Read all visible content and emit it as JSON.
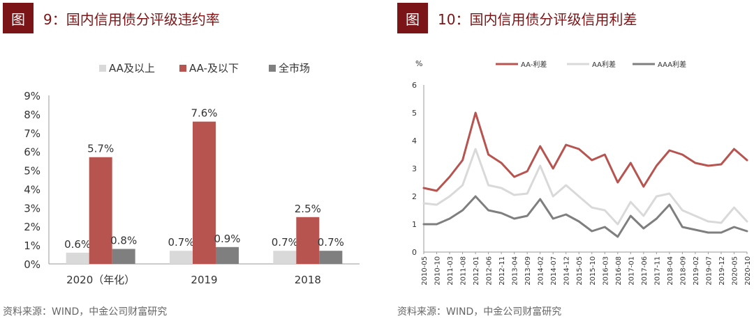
{
  "left": {
    "fig_label": "图",
    "title": "9：国内信用债分评级违约率",
    "source": "资料来源：WIND，中金公司财富研究"
  },
  "right": {
    "fig_label": "图",
    "title": "10：国内信用债分评级信用利差",
    "source": "资料来源：WIND，中金公司财富研究"
  },
  "chart_data": [
    {
      "type": "bar",
      "categories": [
        "2020（年化）",
        "2019",
        "2018"
      ],
      "series": [
        {
          "name": "AA及以上",
          "values": [
            0.6,
            0.7,
            0.7
          ],
          "labels": [
            "0.6%",
            "0.7%",
            "0.7%"
          ],
          "color": "#d9d9d9"
        },
        {
          "name": "AA-及以下",
          "values": [
            5.7,
            7.6,
            2.5
          ],
          "labels": [
            "5.7%",
            "7.6%",
            "2.5%"
          ],
          "color": "#b85450"
        },
        {
          "name": "全市场",
          "values": [
            0.8,
            0.9,
            0.7
          ],
          "labels": [
            "0.8%",
            "0.9%",
            "0.7%"
          ],
          "color": "#7f7f7f"
        }
      ],
      "ylim": [
        0,
        9
      ],
      "yticks": [
        "0%",
        "1%",
        "2%",
        "3%",
        "4%",
        "5%",
        "6%",
        "7%",
        "8%",
        "9%"
      ],
      "legend": "top",
      "title": "国内信用债分评级违约率"
    },
    {
      "type": "line",
      "ylabel": "%",
      "ylim": [
        0,
        6
      ],
      "yticks": [
        "0",
        "1",
        "2",
        "3",
        "4",
        "5",
        "6"
      ],
      "xticks": [
        "2010-05",
        "2010-10",
        "2011-03",
        "2011-08",
        "2012-01",
        "2012-06",
        "2012-11",
        "2013-04",
        "2013-09",
        "2014-02",
        "2014-07",
        "2014-12",
        "2015-05",
        "2015-10",
        "2016-03",
        "2016-08",
        "2017-01",
        "2017-06",
        "2017-11",
        "2018-04",
        "2018-09",
        "2019-02",
        "2019-07",
        "2019-12",
        "2020-05",
        "2020-10"
      ],
      "x": [
        0,
        1,
        2,
        3,
        4,
        5,
        6,
        7,
        8,
        9,
        10,
        11,
        12,
        13,
        14,
        15,
        16,
        17,
        18,
        19,
        20,
        21,
        22,
        23,
        24,
        25
      ],
      "series": [
        {
          "name": "AA-利差",
          "color": "#b85450",
          "values": [
            2.3,
            2.2,
            2.7,
            3.3,
            5.0,
            3.5,
            3.2,
            2.7,
            2.9,
            3.8,
            3.0,
            3.85,
            3.7,
            3.3,
            3.5,
            2.5,
            3.2,
            2.35,
            3.1,
            3.65,
            3.5,
            3.2,
            3.1,
            3.15,
            3.7,
            3.3
          ]
        },
        {
          "name": "AA利差",
          "color": "#d9d9d9",
          "values": [
            1.75,
            1.7,
            2.0,
            2.4,
            3.7,
            2.4,
            2.3,
            2.05,
            2.1,
            3.1,
            2.0,
            2.4,
            2.0,
            1.6,
            1.5,
            1.0,
            1.8,
            1.3,
            2.0,
            2.1,
            1.5,
            1.3,
            1.1,
            1.05,
            1.6,
            1.1
          ]
        },
        {
          "name": "AAA利差",
          "color": "#7f7f7f",
          "values": [
            1.0,
            1.0,
            1.2,
            1.5,
            2.0,
            1.5,
            1.4,
            1.2,
            1.3,
            1.9,
            1.2,
            1.35,
            1.1,
            0.75,
            0.9,
            0.55,
            1.3,
            0.85,
            1.2,
            1.7,
            0.9,
            0.8,
            0.7,
            0.7,
            0.9,
            0.75
          ]
        }
      ],
      "legend": "top",
      "title": "国内信用债分评级信用利差"
    }
  ]
}
